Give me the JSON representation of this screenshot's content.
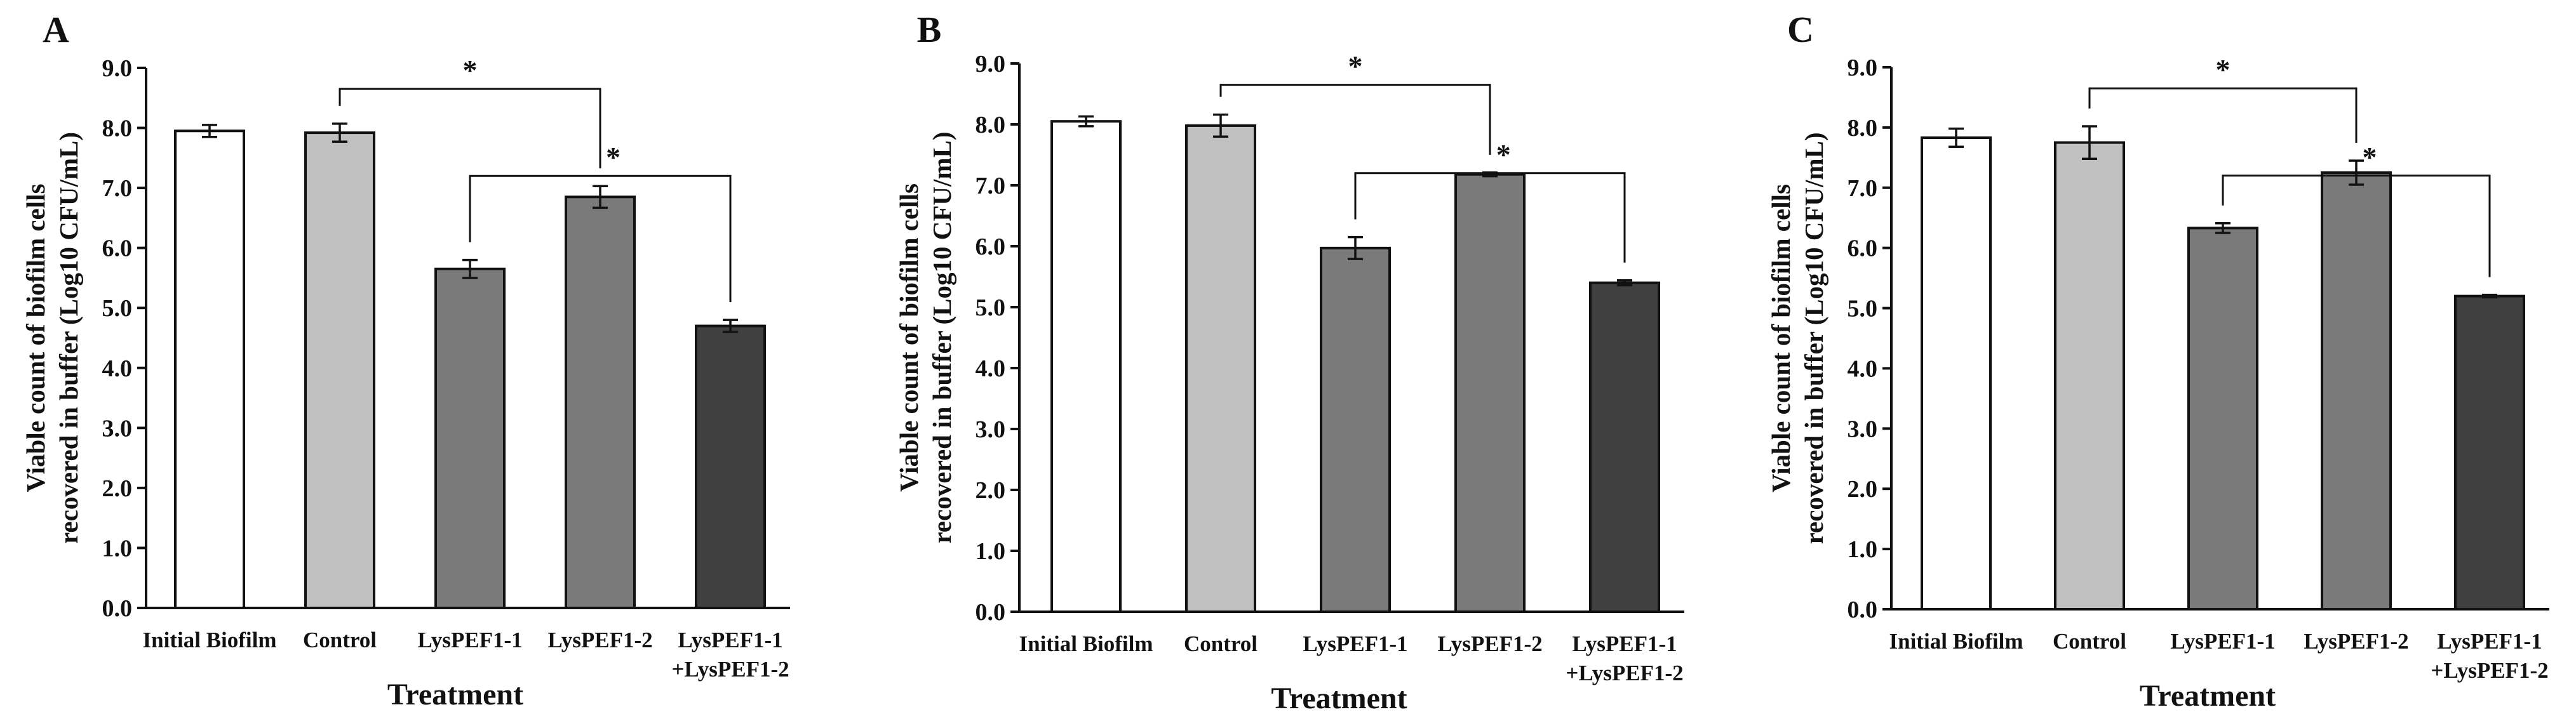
{
  "chart_data": [
    {
      "type": "bar",
      "panel": "A",
      "categories": [
        "Initial Biofilm",
        "Control",
        "LysPEF1-1",
        "LysPEF1-2",
        "LysPEF1-1\n+LysPEF1-2"
      ],
      "values": [
        7.95,
        7.92,
        5.65,
        6.85,
        4.7
      ],
      "errors": [
        0.1,
        0.15,
        0.15,
        0.18,
        0.1
      ],
      "colors": [
        "#ffffff",
        "#c0c0c0",
        "#7a7a7a",
        "#7a7a7a",
        "#404040"
      ],
      "xlabel": "Treatment",
      "ylabel": "Viable count of biofilm cells\nrecovered in buffer (Log10 CFU/mL)",
      "ylim": [
        0,
        9
      ],
      "yticks": [
        "0.0",
        "1.0",
        "2.0",
        "3.0",
        "4.0",
        "5.0",
        "6.0",
        "7.0",
        "8.0",
        "9.0"
      ],
      "significance": [
        {
          "from": 1,
          "to": 3,
          "label": "*"
        },
        {
          "from": 2,
          "to": 4,
          "label": "*"
        }
      ]
    },
    {
      "type": "bar",
      "panel": "B",
      "categories": [
        "Initial Biofilm",
        "Control",
        "LysPEF1-1",
        "LysPEF1-2",
        "LysPEF1-1\n+LysPEF1-2"
      ],
      "values": [
        8.05,
        7.98,
        5.97,
        7.18,
        5.4
      ],
      "errors": [
        0.08,
        0.18,
        0.18,
        0.03,
        0.04
      ],
      "colors": [
        "#ffffff",
        "#c0c0c0",
        "#7a7a7a",
        "#7a7a7a",
        "#404040"
      ],
      "xlabel": "Treatment",
      "ylabel": "Viable count of biofilm cells\nrecovered in buffer (Log10 CFU/mL)",
      "ylim": [
        0,
        9
      ],
      "yticks": [
        "0.0",
        "1.0",
        "2.0",
        "3.0",
        "4.0",
        "5.0",
        "6.0",
        "7.0",
        "8.0",
        "9.0"
      ],
      "significance": [
        {
          "from": 1,
          "to": 3,
          "label": "*"
        },
        {
          "from": 2,
          "to": 4,
          "label": "*"
        }
      ]
    },
    {
      "type": "bar",
      "panel": "C",
      "categories": [
        "Initial Biofilm",
        "Control",
        "LysPEF1-1",
        "LysPEF1-2",
        "LysPEF1-1\n+LysPEF1-2"
      ],
      "values": [
        7.83,
        7.75,
        6.33,
        7.25,
        5.2
      ],
      "errors": [
        0.15,
        0.27,
        0.08,
        0.2,
        0.02
      ],
      "colors": [
        "#ffffff",
        "#c0c0c0",
        "#7a7a7a",
        "#7a7a7a",
        "#404040"
      ],
      "xlabel": "Treatment",
      "ylabel": "Viable count of biofilm cells\nrecovered in buffer (Log10 CFU/mL)",
      "ylim": [
        0,
        9
      ],
      "yticks": [
        "0.0",
        "1.0",
        "2.0",
        "3.0",
        "4.0",
        "5.0",
        "6.0",
        "7.0",
        "8.0",
        "9.0"
      ],
      "significance": [
        {
          "from": 1,
          "to": 3,
          "label": "*"
        },
        {
          "from": 2,
          "to": 4,
          "label": "*"
        }
      ]
    }
  ]
}
